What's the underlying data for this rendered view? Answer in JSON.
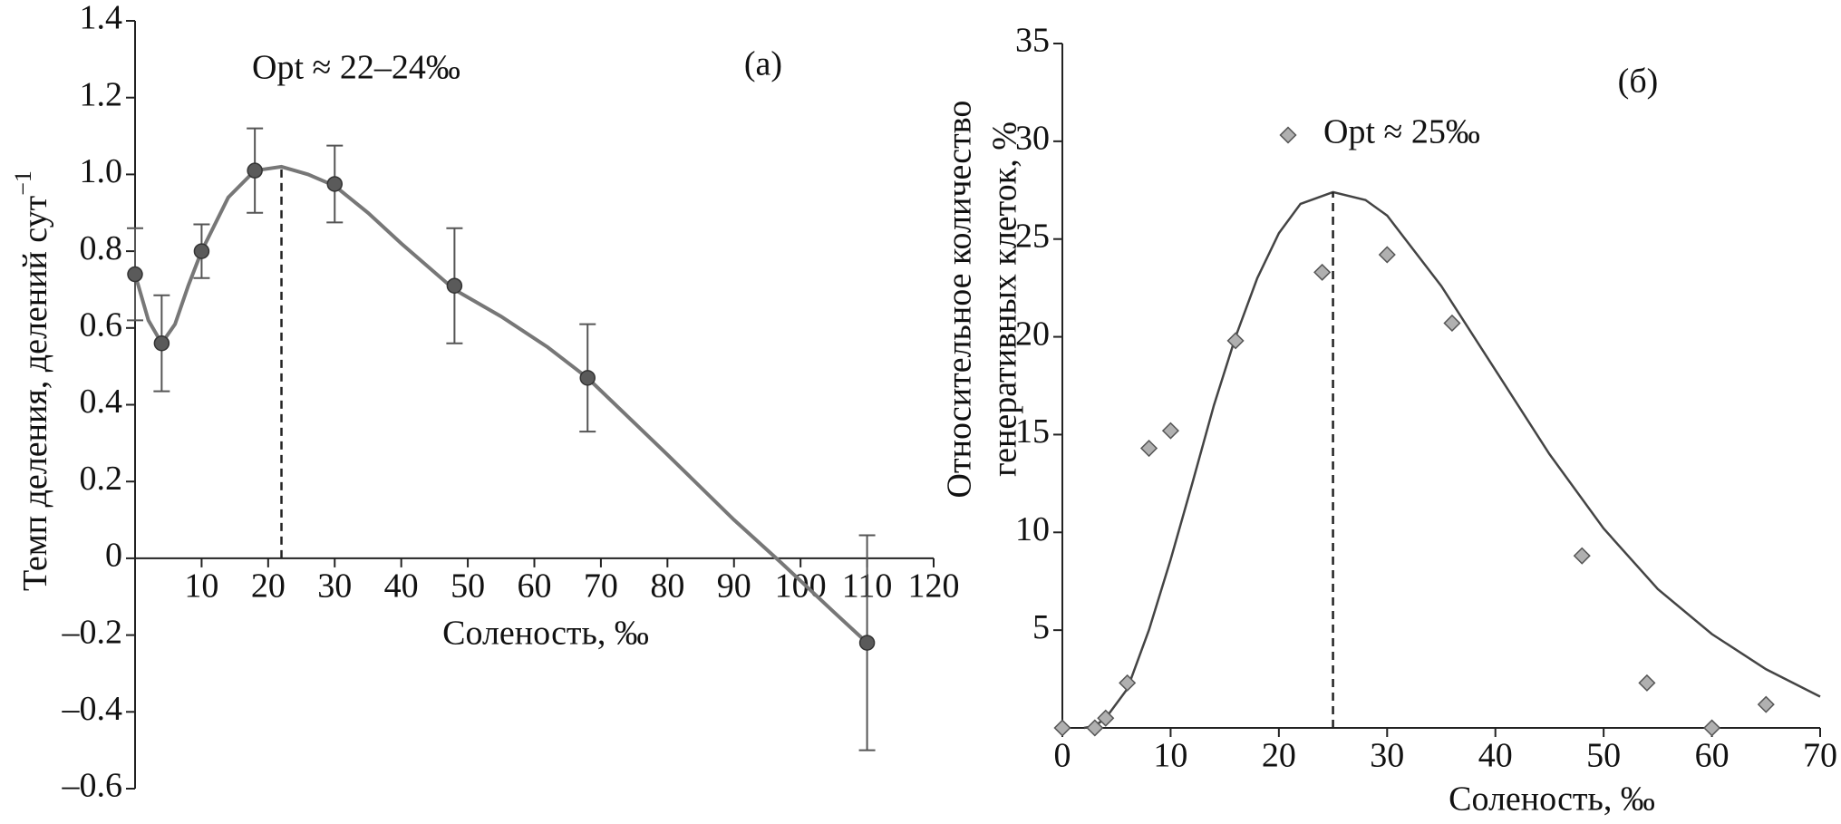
{
  "chart_data": [
    {
      "type": "line",
      "panel_label": "(a)",
      "annotation": "Opt ≈ 22–24‰",
      "xlabel": "Соленость, ‰",
      "ylabel": "Темп деления, делений сут",
      "ylabel_sup": "−1",
      "xlim": [
        0,
        120
      ],
      "ylim": [
        -0.6,
        1.4
      ],
      "xticks": [
        10,
        20,
        30,
        40,
        50,
        60,
        70,
        80,
        90,
        100,
        110,
        120
      ],
      "yticks": [
        {
          "value": -0.6,
          "label": "–0.6"
        },
        {
          "value": -0.4,
          "label": "–0.4"
        },
        {
          "value": -0.2,
          "label": "–0.2"
        },
        0,
        0.2,
        0.4,
        0.6,
        0.8,
        {
          "value": 1,
          "label": "1.0"
        },
        1.2,
        1.4
      ],
      "color": "#777777",
      "series": [
        {
          "color": "#5a5a5a",
          "x": [
            0,
            4,
            10,
            18,
            30,
            48,
            68,
            110
          ],
          "values": [
            0.74,
            0.56,
            0.8,
            1.01,
            0.975,
            0.71,
            0.47,
            -0.22
          ],
          "errors": [
            0.12,
            0.125,
            0.07,
            0.11,
            0.1,
            0.15,
            0.14,
            0.28
          ]
        }
      ],
      "fit": {
        "x": [
          0,
          2,
          4,
          6,
          8,
          10,
          14,
          18,
          22,
          26,
          30,
          35,
          40,
          48,
          55,
          62,
          68,
          80,
          90,
          97,
          105,
          110
        ],
        "values": [
          0.74,
          0.62,
          0.56,
          0.61,
          0.71,
          0.8,
          0.94,
          1.01,
          1.02,
          1.0,
          0.97,
          0.9,
          0.82,
          0.7,
          0.63,
          0.55,
          0.47,
          0.27,
          0.1,
          -0.01,
          -0.14,
          -0.22
        ]
      },
      "opt_x": 22
    },
    {
      "type": "scatter",
      "panel_label": "(б)",
      "xlabel": "Соленость, ‰",
      "ylabel": [
        "Относительное количество",
        "генеративных клеток, %"
      ],
      "xlim": [
        0,
        70
      ],
      "ylim": [
        0,
        35
      ],
      "xticks": [
        0,
        10,
        20,
        30,
        40,
        50,
        60,
        70
      ],
      "yticks": [
        5,
        10,
        15,
        20,
        25,
        30,
        35
      ],
      "color": "#444444",
      "series": [
        {
          "name": "Opt ≈ 25‰",
          "color": "#b0b0b0",
          "x": [
            0,
            3,
            4,
            6,
            8,
            10,
            16,
            24,
            30,
            36,
            48,
            54,
            60,
            65
          ],
          "values": [
            0,
            0,
            0.5,
            2.3,
            14.3,
            15.2,
            19.8,
            23.3,
            24.2,
            20.7,
            8.8,
            2.3,
            0,
            1.2
          ]
        }
      ],
      "fit": {
        "x": [
          2,
          3,
          4,
          6,
          8,
          10,
          12,
          14,
          16,
          18,
          20,
          22,
          25,
          28,
          30,
          35,
          40,
          45,
          50,
          55,
          60,
          65,
          70
        ],
        "values": [
          0,
          0.1,
          0.5,
          2.0,
          5.0,
          8.6,
          12.5,
          16.5,
          20.0,
          23.0,
          25.3,
          26.8,
          27.4,
          27.0,
          26.2,
          22.6,
          18.3,
          14.0,
          10.2,
          7.1,
          4.8,
          3.0,
          1.6
        ]
      },
      "opt_x": 25
    }
  ]
}
